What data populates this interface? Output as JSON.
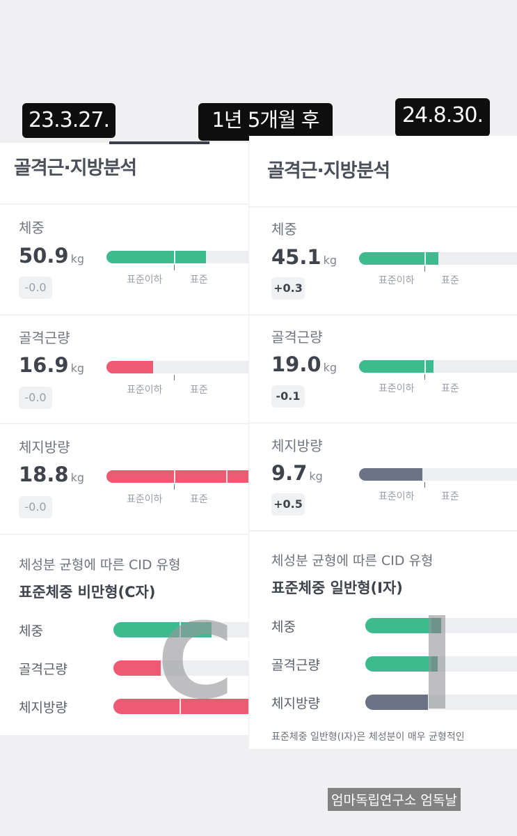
{
  "dates": {
    "before": "23.3.27.",
    "gap": "1년 5개월 후",
    "after": "24.8.30."
  },
  "before": {
    "title": "골격근·지방분석",
    "metrics": [
      {
        "label": "체중",
        "value": "50.9",
        "unit": "kg",
        "delta": "-0.0",
        "level": 0.7
      },
      {
        "label": "골격근량",
        "value": "16.9",
        "unit": "kg",
        "delta": "-0.0",
        "level": 0.33
      },
      {
        "label": "체지방량",
        "value": "18.8",
        "unit": "kg",
        "delta": "-0.0",
        "level": 1.0
      }
    ],
    "scale": {
      "below": "표준이하",
      "standard": "표준"
    },
    "cid": {
      "caption": "체성분 균형에 따른 CID 유형",
      "type": "표준체중 비만형(C자)",
      "rows": [
        "체중",
        "골격근량",
        "체지방량"
      ],
      "letter": "C"
    }
  },
  "after": {
    "title": "골격근·지방분석",
    "metrics": [
      {
        "label": "체중",
        "value": "45.1",
        "unit": "kg",
        "delta": "+0.3",
        "level": 0.5
      },
      {
        "label": "골격근량",
        "value": "19.0",
        "unit": "kg",
        "delta": "-0.1",
        "level": 0.47
      },
      {
        "label": "체지방량",
        "value": "9.7",
        "unit": "kg",
        "delta": "+0.5",
        "level": 0.4
      }
    ],
    "scale": {
      "below": "표준이하",
      "standard": "표준"
    },
    "cid": {
      "caption": "체성분 균형에 따른 CID 유형",
      "type": "표준체중 일반형(I자)",
      "rows": [
        "체중",
        "골격근량",
        "체지방량"
      ],
      "letter": "I",
      "note": "표준체중 일반형(I자)은 체성분이 매우 균형적인"
    }
  },
  "colors": {
    "green": "#3dbb8e",
    "red": "#ee5a72",
    "gray": "#6b7385",
    "track": "#eceef1"
  },
  "watermark": "엄마독립연구소 엄독날"
}
